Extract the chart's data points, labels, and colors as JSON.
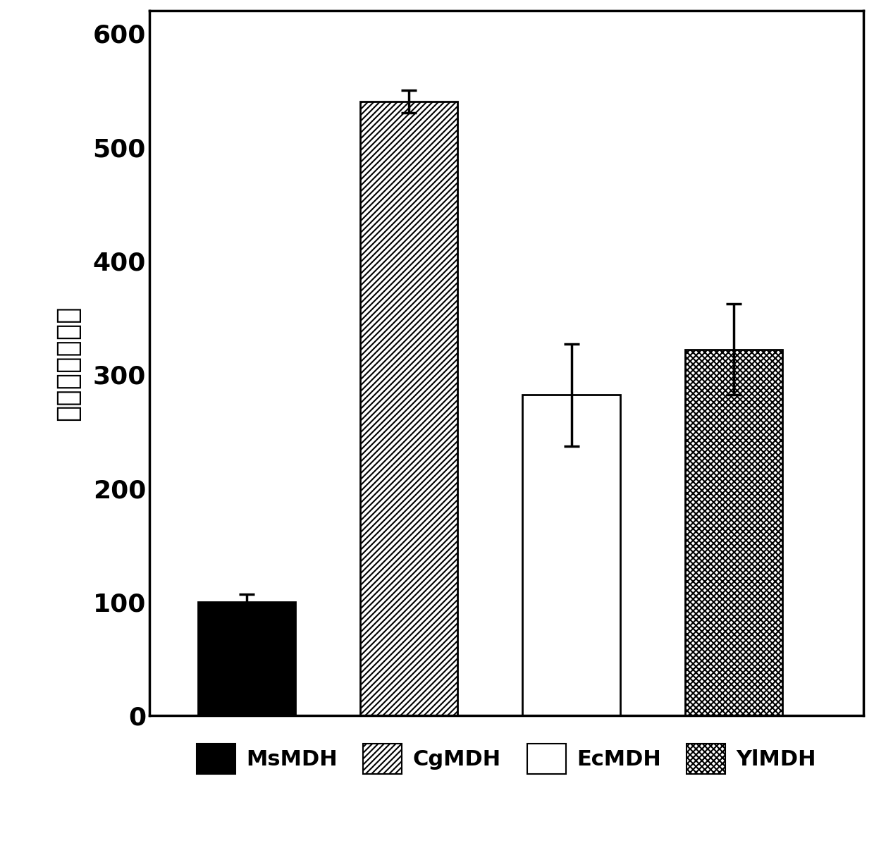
{
  "categories": [
    "MsMDH",
    "CgMDH",
    "EcMDH",
    "YlMDH"
  ],
  "values": [
    100,
    540,
    282,
    322
  ],
  "errors": [
    7,
    10,
    45,
    40
  ],
  "ylabel": "相对活性（％）",
  "ylim": [
    0,
    620
  ],
  "yticks": [
    0,
    100,
    200,
    300,
    400,
    500,
    600
  ],
  "bar_width": 0.6,
  "hatch_patterns": [
    "",
    "////",
    "~",
    "x"
  ],
  "face_colors": [
    "black",
    "white",
    "white",
    "white"
  ],
  "edge_colors": [
    "black",
    "black",
    "black",
    "black"
  ],
  "legend_labels": [
    "MsMDH",
    "CgMDH",
    "EcMDH",
    "YlMDH"
  ],
  "font_size_ticks": 26,
  "font_size_ylabel": 28,
  "font_size_legend": 22,
  "figure_width": 12.4,
  "figure_height": 12.3,
  "bar_positions": [
    1,
    2,
    3,
    4
  ],
  "xlim": [
    0.4,
    4.8
  ]
}
